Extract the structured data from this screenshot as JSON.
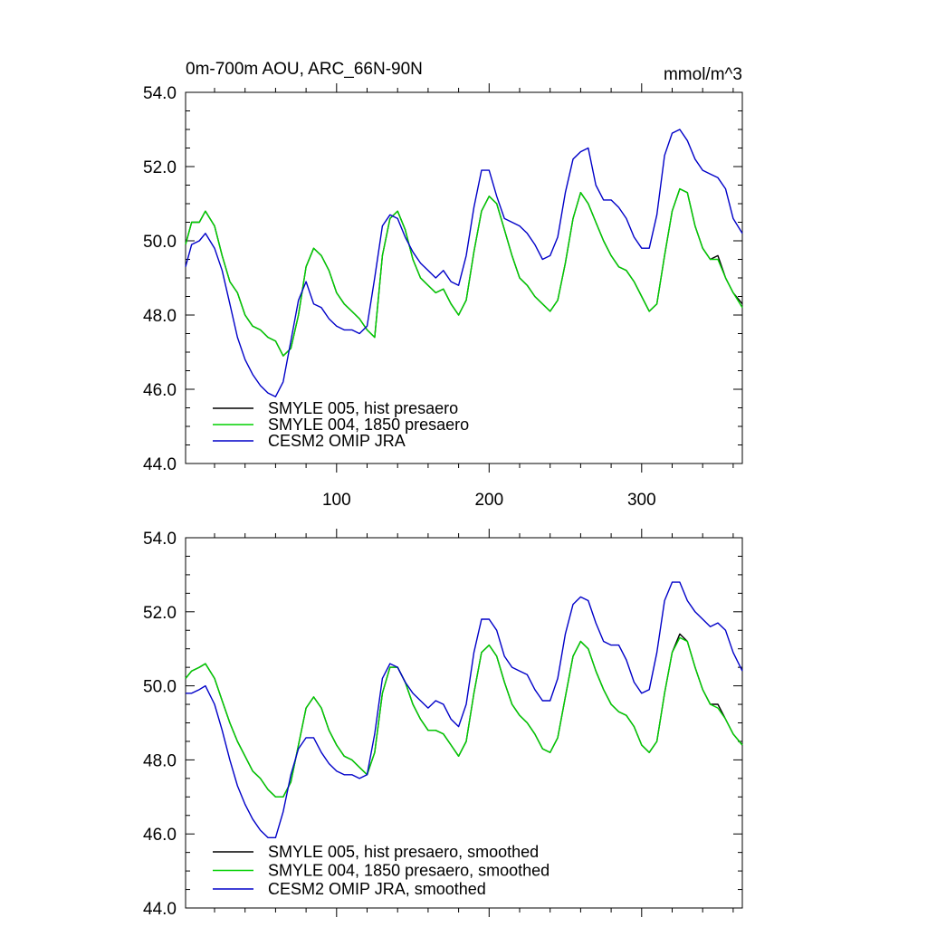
{
  "chart_data": [
    {
      "type": "line",
      "title": "0m-700m AOU, ARC_66N-90N",
      "units": "mmol/m^3",
      "xlim": [
        1,
        366
      ],
      "ylim": [
        44.0,
        54.0
      ],
      "xticks": [
        100,
        200,
        300
      ],
      "xtick_labels": [
        "100",
        "200",
        "300"
      ],
      "yticks": [
        44.0,
        46.0,
        48.0,
        50.0,
        52.0,
        54.0
      ],
      "ytick_labels": [
        "44.0",
        "46.0",
        "48.0",
        "50.0",
        "52.0",
        "54.0"
      ],
      "legend_position": "bottom-left",
      "series": [
        {
          "name": "SMYLE 005, hist presaero",
          "color": "#000000",
          "x": [
            1,
            5,
            10,
            14,
            20,
            25,
            30,
            35,
            40,
            45,
            50,
            55,
            60,
            65,
            70,
            75,
            80,
            85,
            90,
            95,
            100,
            105,
            110,
            115,
            120,
            125,
            130,
            135,
            140,
            145,
            150,
            155,
            160,
            165,
            170,
            175,
            180,
            185,
            190,
            195,
            200,
            205,
            210,
            215,
            220,
            225,
            230,
            235,
            240,
            245,
            250,
            255,
            260,
            265,
            270,
            275,
            280,
            285,
            290,
            295,
            300,
            305,
            310,
            315,
            320,
            325,
            330,
            335,
            340,
            345,
            350,
            355,
            360,
            366
          ],
          "y": [
            49.9,
            50.5,
            50.5,
            50.8,
            50.4,
            49.6,
            48.9,
            48.6,
            48.0,
            47.7,
            47.6,
            47.4,
            47.3,
            46.9,
            47.1,
            48.0,
            49.3,
            49.8,
            49.6,
            49.2,
            48.6,
            48.3,
            48.1,
            47.9,
            47.6,
            47.4,
            49.6,
            50.6,
            50.8,
            50.3,
            49.5,
            49.0,
            48.8,
            48.6,
            48.7,
            48.3,
            48.0,
            48.4,
            49.7,
            50.8,
            51.2,
            51.0,
            50.3,
            49.6,
            49.0,
            48.8,
            48.5,
            48.3,
            48.1,
            48.4,
            49.4,
            50.6,
            51.3,
            51.0,
            50.5,
            50.0,
            49.6,
            49.3,
            49.2,
            48.9,
            48.5,
            48.1,
            48.3,
            49.6,
            50.8,
            51.4,
            51.3,
            50.4,
            49.8,
            49.5,
            49.6,
            49.0,
            48.6,
            48.3
          ]
        },
        {
          "name": "SMYLE 004, 1850 presaero",
          "color": "#00d000",
          "x": [
            1,
            5,
            10,
            14,
            20,
            25,
            30,
            35,
            40,
            45,
            50,
            55,
            60,
            65,
            70,
            75,
            80,
            85,
            90,
            95,
            100,
            105,
            110,
            115,
            120,
            125,
            130,
            135,
            140,
            145,
            150,
            155,
            160,
            165,
            170,
            175,
            180,
            185,
            190,
            195,
            200,
            205,
            210,
            215,
            220,
            225,
            230,
            235,
            240,
            245,
            250,
            255,
            260,
            265,
            270,
            275,
            280,
            285,
            290,
            295,
            300,
            305,
            310,
            315,
            320,
            325,
            330,
            335,
            340,
            345,
            350,
            355,
            360,
            366
          ],
          "y": [
            49.9,
            50.5,
            50.5,
            50.8,
            50.4,
            49.6,
            48.9,
            48.6,
            48.0,
            47.7,
            47.6,
            47.4,
            47.3,
            46.9,
            47.1,
            48.0,
            49.3,
            49.8,
            49.6,
            49.2,
            48.6,
            48.3,
            48.1,
            47.9,
            47.6,
            47.4,
            49.6,
            50.6,
            50.8,
            50.3,
            49.5,
            49.0,
            48.8,
            48.6,
            48.7,
            48.3,
            48.0,
            48.4,
            49.7,
            50.8,
            51.2,
            51.0,
            50.3,
            49.6,
            49.0,
            48.8,
            48.5,
            48.3,
            48.1,
            48.4,
            49.4,
            50.6,
            51.3,
            51.0,
            50.5,
            50.0,
            49.6,
            49.3,
            49.2,
            48.9,
            48.5,
            48.1,
            48.3,
            49.6,
            50.8,
            51.4,
            51.3,
            50.4,
            49.8,
            49.5,
            49.5,
            49.0,
            48.6,
            48.2
          ]
        },
        {
          "name": "CESM2 OMIP JRA",
          "color": "#0000c8",
          "x": [
            1,
            5,
            10,
            14,
            20,
            25,
            30,
            35,
            40,
            45,
            50,
            55,
            60,
            65,
            70,
            75,
            80,
            85,
            90,
            95,
            100,
            105,
            110,
            115,
            120,
            125,
            130,
            135,
            140,
            145,
            150,
            155,
            160,
            165,
            170,
            175,
            180,
            185,
            190,
            195,
            200,
            205,
            210,
            215,
            220,
            225,
            230,
            235,
            240,
            245,
            250,
            255,
            260,
            265,
            270,
            275,
            280,
            285,
            290,
            295,
            300,
            305,
            310,
            315,
            320,
            325,
            330,
            335,
            340,
            345,
            350,
            355,
            360,
            366
          ],
          "y": [
            49.3,
            49.9,
            50.0,
            50.2,
            49.8,
            49.2,
            48.3,
            47.4,
            46.8,
            46.4,
            46.1,
            45.9,
            45.8,
            46.2,
            47.3,
            48.4,
            48.9,
            48.3,
            48.2,
            47.9,
            47.7,
            47.6,
            47.6,
            47.5,
            47.7,
            49.0,
            50.4,
            50.7,
            50.6,
            50.1,
            49.7,
            49.4,
            49.2,
            49.0,
            49.2,
            48.9,
            48.8,
            49.6,
            50.9,
            51.9,
            51.9,
            51.2,
            50.6,
            50.5,
            50.4,
            50.2,
            49.9,
            49.5,
            49.6,
            50.1,
            51.3,
            52.2,
            52.4,
            52.5,
            51.5,
            51.1,
            51.1,
            50.9,
            50.6,
            50.1,
            49.8,
            49.8,
            50.7,
            52.3,
            52.9,
            53.0,
            52.7,
            52.2,
            51.9,
            51.8,
            51.7,
            51.4,
            50.6,
            50.2
          ]
        }
      ]
    },
    {
      "type": "line",
      "xlim": [
        1,
        366
      ],
      "ylim": [
        44.0,
        54.0
      ],
      "yticks": [
        44.0,
        46.0,
        48.0,
        50.0,
        52.0,
        54.0
      ],
      "ytick_labels": [
        "44.0",
        "46.0",
        "48.0",
        "50.0",
        "52.0",
        "54.0"
      ],
      "legend_position": "bottom-left",
      "series": [
        {
          "name": "SMYLE 005, hist presaero, smoothed",
          "color": "#000000",
          "x": [
            1,
            5,
            10,
            14,
            20,
            25,
            30,
            35,
            40,
            45,
            50,
            55,
            60,
            65,
            70,
            75,
            80,
            85,
            90,
            95,
            100,
            105,
            110,
            115,
            120,
            125,
            130,
            135,
            140,
            145,
            150,
            155,
            160,
            165,
            170,
            175,
            180,
            185,
            190,
            195,
            200,
            205,
            210,
            215,
            220,
            225,
            230,
            235,
            240,
            245,
            250,
            255,
            260,
            265,
            270,
            275,
            280,
            285,
            290,
            295,
            300,
            305,
            310,
            315,
            320,
            325,
            330,
            335,
            340,
            345,
            350,
            355,
            360,
            366
          ],
          "y": [
            50.2,
            50.4,
            50.5,
            50.6,
            50.2,
            49.6,
            49.0,
            48.5,
            48.1,
            47.7,
            47.5,
            47.2,
            47.0,
            47.0,
            47.4,
            48.4,
            49.4,
            49.7,
            49.4,
            48.8,
            48.4,
            48.1,
            48.0,
            47.8,
            47.6,
            48.2,
            49.8,
            50.5,
            50.5,
            50.1,
            49.5,
            49.1,
            48.8,
            48.8,
            48.7,
            48.4,
            48.1,
            48.5,
            49.8,
            50.9,
            51.1,
            50.8,
            50.1,
            49.5,
            49.2,
            49.0,
            48.7,
            48.3,
            48.2,
            48.6,
            49.7,
            50.8,
            51.2,
            51.0,
            50.4,
            49.9,
            49.5,
            49.3,
            49.2,
            48.9,
            48.4,
            48.2,
            48.5,
            49.8,
            50.9,
            51.4,
            51.2,
            50.5,
            49.9,
            49.5,
            49.5,
            49.1,
            48.7,
            48.4
          ]
        },
        {
          "name": "SMYLE 004, 1850 presaero, smoothed",
          "color": "#00d000",
          "x": [
            1,
            5,
            10,
            14,
            20,
            25,
            30,
            35,
            40,
            45,
            50,
            55,
            60,
            65,
            70,
            75,
            80,
            85,
            90,
            95,
            100,
            105,
            110,
            115,
            120,
            125,
            130,
            135,
            140,
            145,
            150,
            155,
            160,
            165,
            170,
            175,
            180,
            185,
            190,
            195,
            200,
            205,
            210,
            215,
            220,
            225,
            230,
            235,
            240,
            245,
            250,
            255,
            260,
            265,
            270,
            275,
            280,
            285,
            290,
            295,
            300,
            305,
            310,
            315,
            320,
            325,
            330,
            335,
            340,
            345,
            350,
            355,
            360,
            366
          ],
          "y": [
            50.2,
            50.4,
            50.5,
            50.6,
            50.2,
            49.6,
            49.0,
            48.5,
            48.1,
            47.7,
            47.5,
            47.2,
            47.0,
            47.0,
            47.4,
            48.4,
            49.4,
            49.7,
            49.4,
            48.8,
            48.4,
            48.1,
            48.0,
            47.8,
            47.6,
            48.2,
            49.8,
            50.5,
            50.5,
            50.1,
            49.5,
            49.1,
            48.8,
            48.8,
            48.7,
            48.4,
            48.1,
            48.5,
            49.8,
            50.9,
            51.1,
            50.8,
            50.1,
            49.5,
            49.2,
            49.0,
            48.7,
            48.3,
            48.2,
            48.6,
            49.7,
            50.8,
            51.2,
            51.0,
            50.4,
            49.9,
            49.5,
            49.3,
            49.2,
            48.9,
            48.4,
            48.2,
            48.5,
            49.8,
            50.9,
            51.3,
            51.2,
            50.5,
            49.9,
            49.5,
            49.4,
            49.1,
            48.7,
            48.4
          ]
        },
        {
          "name": "CESM2 OMIP JRA, smoothed",
          "color": "#0000c8",
          "x": [
            1,
            5,
            10,
            14,
            20,
            25,
            30,
            35,
            40,
            45,
            50,
            55,
            60,
            65,
            70,
            75,
            80,
            85,
            90,
            95,
            100,
            105,
            110,
            115,
            120,
            125,
            130,
            135,
            140,
            145,
            150,
            155,
            160,
            165,
            170,
            175,
            180,
            185,
            190,
            195,
            200,
            205,
            210,
            215,
            220,
            225,
            230,
            235,
            240,
            245,
            250,
            255,
            260,
            265,
            270,
            275,
            280,
            285,
            290,
            295,
            300,
            305,
            310,
            315,
            320,
            325,
            330,
            335,
            340,
            345,
            350,
            355,
            360,
            366
          ],
          "y": [
            49.8,
            49.8,
            49.9,
            50.0,
            49.5,
            48.8,
            48.0,
            47.3,
            46.8,
            46.4,
            46.1,
            45.9,
            45.9,
            46.6,
            47.6,
            48.3,
            48.6,
            48.6,
            48.2,
            47.9,
            47.7,
            47.6,
            47.6,
            47.5,
            47.6,
            48.7,
            50.2,
            50.6,
            50.5,
            50.1,
            49.8,
            49.6,
            49.4,
            49.6,
            49.5,
            49.1,
            48.9,
            49.5,
            50.9,
            51.8,
            51.8,
            51.5,
            50.8,
            50.5,
            50.4,
            50.3,
            49.9,
            49.6,
            49.6,
            50.2,
            51.4,
            52.2,
            52.4,
            52.3,
            51.7,
            51.2,
            51.1,
            51.1,
            50.7,
            50.1,
            49.8,
            49.9,
            50.9,
            52.3,
            52.8,
            52.8,
            52.3,
            52.0,
            51.8,
            51.6,
            51.7,
            51.5,
            50.9,
            50.4
          ]
        }
      ]
    }
  ]
}
